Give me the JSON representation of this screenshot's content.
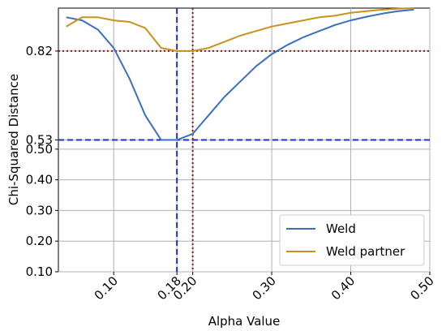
{
  "chart_data": {
    "type": "line",
    "xlabel": "Alpha Value",
    "ylabel": "Chi-Squared Distance",
    "xlim": [
      0.03,
      0.5
    ],
    "ylim": [
      0.1,
      0.96
    ],
    "x_ticks": [
      0.1,
      0.18,
      0.2,
      0.3,
      0.4,
      0.5
    ],
    "x_tick_labels": [
      "0.10",
      "0.18",
      "0.20",
      "0.30",
      "0.40",
      "0.50"
    ],
    "y_ticks": [
      0.1,
      0.2,
      0.3,
      0.4,
      0.5,
      0.53,
      0.82
    ],
    "y_tick_labels": [
      "0.10",
      "0.20",
      "0.30",
      "0.40",
      "0.50",
      "0.53",
      "0.82"
    ],
    "grid": true,
    "legend_position": "lower-right",
    "series": [
      {
        "name": "Weld",
        "color": "#3a6fbf",
        "x": [
          0.04,
          0.06,
          0.08,
          0.1,
          0.12,
          0.14,
          0.16,
          0.18,
          0.2,
          0.22,
          0.24,
          0.26,
          0.28,
          0.3,
          0.32,
          0.34,
          0.36,
          0.38,
          0.4,
          0.42,
          0.44,
          0.46,
          0.48
        ],
        "values": [
          0.93,
          0.92,
          0.89,
          0.83,
          0.73,
          0.61,
          0.53,
          0.53,
          0.55,
          0.61,
          0.67,
          0.72,
          0.77,
          0.81,
          0.84,
          0.865,
          0.885,
          0.905,
          0.92,
          0.932,
          0.942,
          0.95,
          0.955
        ]
      },
      {
        "name": "Weld partner",
        "color": "#c8921e",
        "x": [
          0.04,
          0.06,
          0.08,
          0.1,
          0.12,
          0.14,
          0.16,
          0.18,
          0.2,
          0.22,
          0.24,
          0.26,
          0.28,
          0.3,
          0.32,
          0.34,
          0.36,
          0.38,
          0.4,
          0.42,
          0.44,
          0.46,
          0.48
        ],
        "values": [
          0.9,
          0.93,
          0.93,
          0.92,
          0.915,
          0.895,
          0.83,
          0.82,
          0.82,
          0.83,
          0.85,
          0.87,
          0.885,
          0.9,
          0.91,
          0.92,
          0.93,
          0.935,
          0.945,
          0.95,
          0.955,
          0.958,
          0.96
        ]
      }
    ],
    "reference_lines": [
      {
        "orientation": "vertical",
        "value": 0.18,
        "color": "#1f2fbf",
        "style": "dashed"
      },
      {
        "orientation": "horizontal",
        "value": 0.53,
        "color": "#1f2fbf",
        "style": "dashed"
      },
      {
        "orientation": "vertical",
        "value": 0.2,
        "color": "#8b1a1a",
        "style": "dotted"
      },
      {
        "orientation": "horizontal",
        "value": 0.82,
        "color": "#8b1a1a",
        "style": "dotted"
      }
    ]
  }
}
